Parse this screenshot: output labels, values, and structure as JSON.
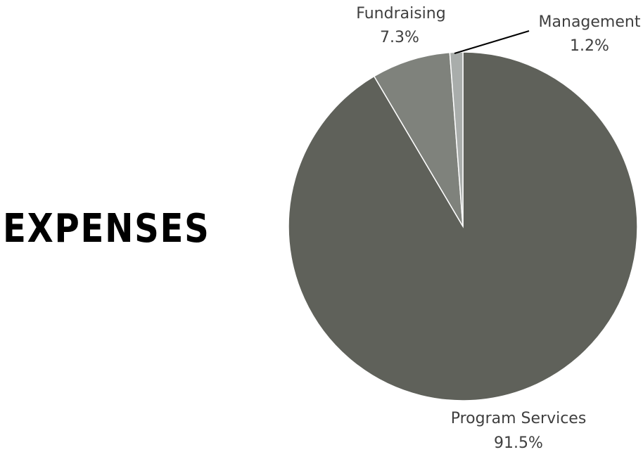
{
  "heading": "EXPENSES",
  "chart_data": {
    "type": "pie",
    "title": "",
    "categories": [
      "Program Services",
      "Fundraising",
      "Management"
    ],
    "values": [
      91.5,
      7.3,
      1.2
    ],
    "value_labels": [
      "91.5%",
      "7.3%",
      "1.2%"
    ],
    "colors": [
      "#5f615a",
      "#7f827c",
      "#a9adab"
    ],
    "start_angle": "12 o'clock, clockwise",
    "legend": "none (direct labels)"
  }
}
